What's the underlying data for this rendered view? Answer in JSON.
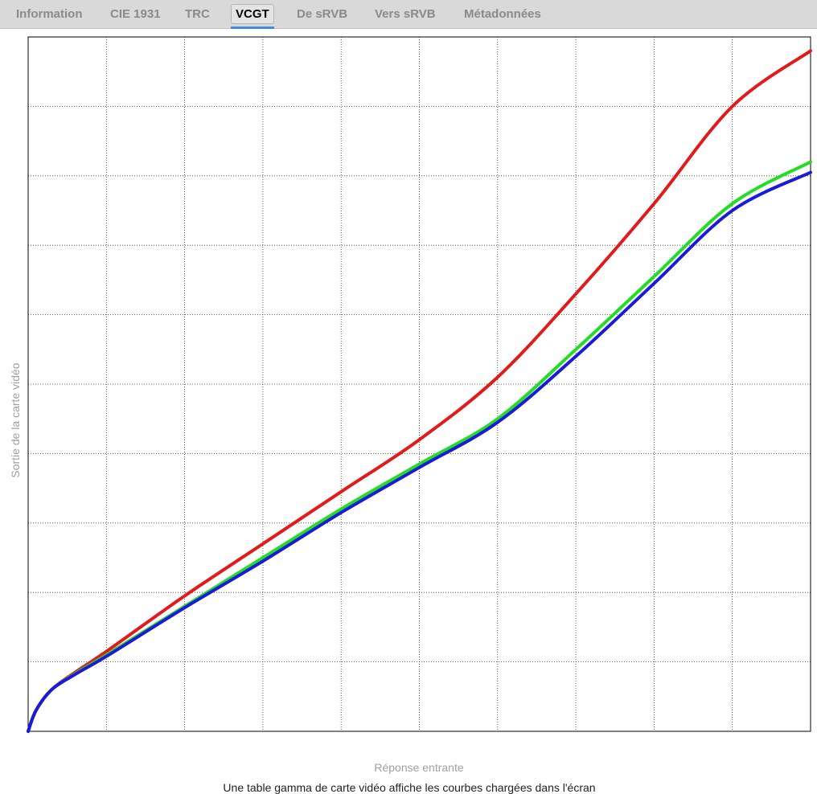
{
  "tabs": [
    {
      "label": "Information",
      "active": false
    },
    {
      "label": "CIE 1931",
      "active": false
    },
    {
      "label": "TRC",
      "active": false
    },
    {
      "label": "VCGT",
      "active": true
    },
    {
      "label": "De sRVB",
      "active": false
    },
    {
      "label": "Vers sRVB",
      "active": false
    },
    {
      "label": "Métadonnées",
      "active": false
    }
  ],
  "colors": {
    "accent": "#3d8ae0",
    "tab_bar": "#d9d9d9",
    "red": "#e41a1a",
    "green": "#22dd22",
    "blue": "#1a1adc"
  },
  "chart_data": {
    "type": "line",
    "xlabel": "Réponse entrante",
    "ylabel": "Sortie de la carte vidéo",
    "caption": "Une table gamma de carte vidéo affiche les courbes chargées dans l'écran",
    "xlim": [
      0,
      1
    ],
    "ylim": [
      0,
      1
    ],
    "grid": true,
    "x": [
      0,
      0.01,
      0.03,
      0.06,
      0.1,
      0.2,
      0.3,
      0.4,
      0.5,
      0.6,
      0.7,
      0.8,
      0.9,
      1.0
    ],
    "series": [
      {
        "color": "#e41a1a",
        "values": [
          0,
          0.03,
          0.06,
          0.085,
          0.115,
          0.195,
          0.27,
          0.345,
          0.42,
          0.51,
          0.63,
          0.76,
          0.9,
          0.98
        ]
      },
      {
        "color": "#22dd22",
        "values": [
          0,
          0.03,
          0.06,
          0.083,
          0.11,
          0.18,
          0.25,
          0.32,
          0.385,
          0.45,
          0.55,
          0.655,
          0.76,
          0.82
        ]
      },
      {
        "color": "#1a1adc",
        "values": [
          0,
          0.03,
          0.06,
          0.082,
          0.108,
          0.178,
          0.245,
          0.315,
          0.38,
          0.445,
          0.54,
          0.645,
          0.75,
          0.805
        ]
      }
    ]
  }
}
